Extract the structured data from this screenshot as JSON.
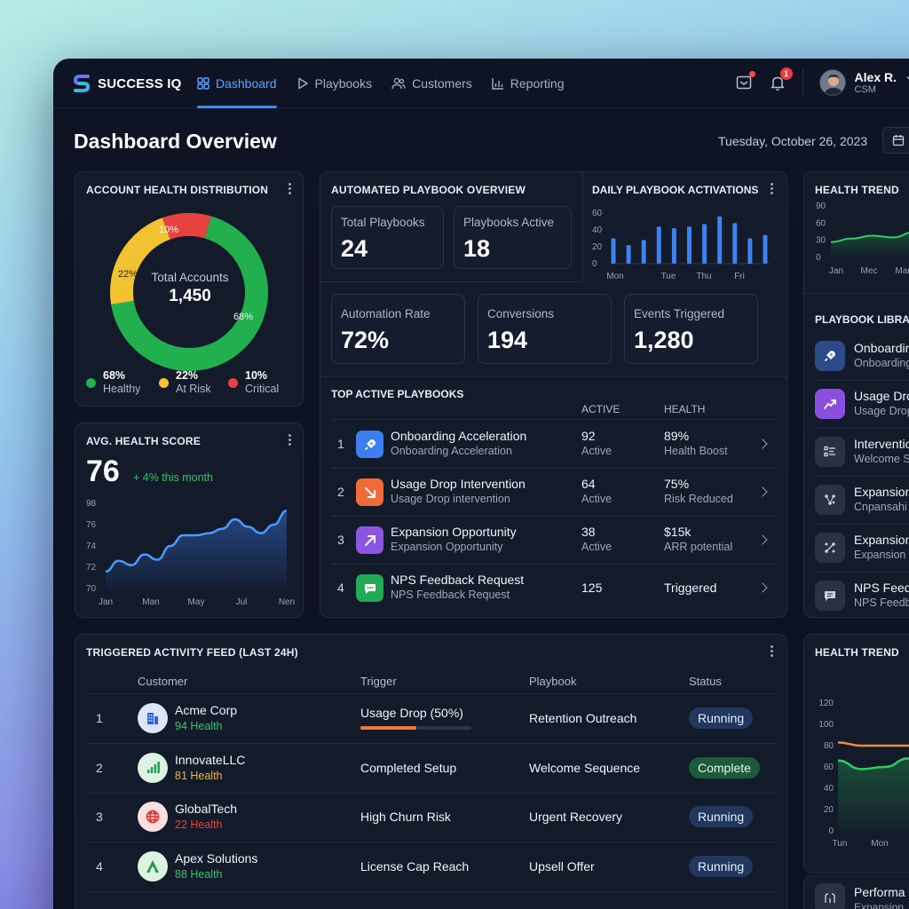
{
  "app": {
    "name": "SUCCESS IQ"
  },
  "nav": [
    {
      "label": "Dashboard",
      "icon": "grid-icon",
      "active": true
    },
    {
      "label": "Playbooks",
      "icon": "play-icon"
    },
    {
      "label": "Customers",
      "icon": "users-icon"
    },
    {
      "label": "Reporting",
      "icon": "bar-chart-icon"
    }
  ],
  "notifications": {
    "badge_count": "1"
  },
  "user": {
    "name": "Alex R.",
    "role": "CSM"
  },
  "page": {
    "title": "Dashboard Overview",
    "date": "Tuesday, October 26, 2023"
  },
  "health_distribution": {
    "title": "ACCOUNT HEALTH DISTRIBUTION",
    "center_label": "Total Accounts",
    "center_value": "1,450",
    "segments": [
      {
        "name": "Healthy",
        "pct_label": "68%",
        "value": 68,
        "color": "#22b04f"
      },
      {
        "name": "At Risk",
        "pct_label": "22%",
        "value": 22,
        "color": "#f2c230"
      },
      {
        "name": "Critical",
        "pct_label": "10%",
        "value": 10,
        "color": "#e8413f"
      }
    ]
  },
  "avg_health": {
    "title": "AVG. HEALTH SCORE",
    "value": "76",
    "change": "+ 4% this month",
    "y_ticks": [
      "98",
      "76",
      "74",
      "72",
      "70"
    ],
    "x_ticks": [
      "Jan",
      "Man",
      "May",
      "Jul",
      "Nen"
    ],
    "points": [
      71.6,
      72.6,
      72.2,
      73.2,
      72.7,
      74.0,
      75.0,
      75.0,
      75.2,
      75.6,
      76.5,
      75.8,
      75.2,
      76.0,
      77.3
    ]
  },
  "playbook_overview": {
    "title": "AUTOMATED PLAYBOOK OVERVIEW",
    "stats": [
      {
        "label": "Total Playbooks",
        "value": "24"
      },
      {
        "label": "Playbooks Active",
        "value": "18"
      },
      {
        "label": "Automation Rate",
        "value": "72%"
      },
      {
        "label": "Conversions",
        "value": "194"
      },
      {
        "label": "Events Triggered",
        "value": "1,280"
      }
    ]
  },
  "daily_activations": {
    "title": "DAILY PLAYBOOK ACTIVATIONS",
    "y_ticks": [
      "60",
      "40",
      "20",
      "0"
    ],
    "x_ticks": [
      "Mon",
      "Tue",
      "Thu",
      "Fri"
    ],
    "values": [
      30,
      22,
      28,
      44,
      42,
      44,
      47,
      56,
      48,
      30,
      34
    ],
    "color": "#3d82f0"
  },
  "health_trend_top": {
    "title": "HEALTH TREND",
    "y_ticks": [
      "90",
      "60",
      "30",
      "0"
    ],
    "x_ticks": [
      "Jan",
      "Mec",
      "Mar"
    ],
    "points": [
      27,
      33,
      38,
      35,
      44,
      42,
      47
    ]
  },
  "top_playbooks": {
    "title": "TOP ACTIVE PLAYBOOKS",
    "headers": {
      "active": "ACTIVE",
      "health": "HEALTH"
    },
    "rows": [
      {
        "rank": "1",
        "name": "Onboarding Acceleration",
        "sub": "Onboarding Acceleration",
        "active": "92",
        "active_sub": "Active",
        "health": "89%",
        "health_sub": "Health Boost",
        "icon": "rocket-icon",
        "color": "#3b7ff0"
      },
      {
        "rank": "2",
        "name": "Usage Drop Intervention",
        "sub": "Usage Drop intervention",
        "active": "64",
        "active_sub": "Active",
        "health": "75%",
        "health_sub": "Risk Reduced",
        "icon": "arrow-down-right-icon",
        "color": "#f06a3a"
      },
      {
        "rank": "3",
        "name": "Expansion Opportunity",
        "sub": "Expansion Opportunity",
        "active": "38",
        "active_sub": "Active",
        "health": "$15k",
        "health_sub": "ARR potential",
        "icon": "arrow-up-right-icon",
        "color": "#8b55e0"
      },
      {
        "rank": "4",
        "name": "NPS Feedback Request",
        "sub": "NPS Feedback Request",
        "active": "125",
        "active_sub": "",
        "health": "Triggered",
        "health_sub": "",
        "icon": "chat-icon",
        "color": "#24a957"
      }
    ]
  },
  "library": {
    "title": "PLAYBOOK LIBRARY",
    "items": [
      {
        "name": "Onboarding",
        "sub": "Onboarding",
        "icon": "rocket-icon",
        "color": "#2b4a86"
      },
      {
        "name": "Usage Drop",
        "sub": "Usage Drop",
        "icon": "trend-icon",
        "color": "#8b4fe0"
      },
      {
        "name": "Intervention",
        "sub": "Welcome S",
        "icon": "list-icon",
        "color": "#2a3142"
      },
      {
        "name": "Expansion",
        "sub": "Cnpansahi",
        "icon": "nodes-icon",
        "color": "#2a3142"
      },
      {
        "name": "Expansion",
        "sub": "Expansion",
        "icon": "share-icon",
        "color": "#2a3142"
      },
      {
        "name": "NPS Feed",
        "sub": "NPS Feedb",
        "icon": "message-icon",
        "color": "#2a3142"
      }
    ]
  },
  "activity_feed": {
    "title": "TRIGGERED ACTIVITY FEED (LAST 24H)",
    "headers": {
      "customer": "Customer",
      "trigger": "Trigger",
      "playbook": "Playbook",
      "status": "Status"
    },
    "rows": [
      {
        "rank": "1",
        "customer": "Acme Corp",
        "health": "94 Health",
        "health_color": "#37c46a",
        "trigger": "Usage Drop (50%)",
        "progress": 0.5,
        "playbook": "Retention Outreach",
        "status": "Running",
        "icon": "building-icon",
        "avatar_bg": "#dce6fa",
        "icon_color": "#2d5fd8"
      },
      {
        "rank": "2",
        "customer": "InnovateLLC",
        "health": "81 Health",
        "health_color": "#e8b93a",
        "trigger": "Completed Setup",
        "progress": null,
        "playbook": "Welcome Sequence",
        "status": "Complete",
        "icon": "signal-icon",
        "avatar_bg": "#dcf3e2",
        "icon_color": "#22a052"
      },
      {
        "rank": "3",
        "customer": "GlobalTech",
        "health": "22 Health",
        "health_color": "#e8413f",
        "trigger": "High Churn Risk",
        "progress": null,
        "playbook": "Urgent Recovery",
        "status": "Running",
        "icon": "globe-icon",
        "avatar_bg": "#fbdede",
        "icon_color": "#d8322f"
      },
      {
        "rank": "4",
        "customer": "Apex Solutions",
        "health": "88 Health",
        "health_color": "#37c46a",
        "trigger": "License Cap Reach",
        "progress": null,
        "playbook": "Upsell Offer",
        "status": "Running",
        "icon": "apex-icon",
        "avatar_bg": "#dcf3e2",
        "icon_color": "#1f9a4c"
      }
    ]
  },
  "health_trend_bottom": {
    "title": "HEALTH TREND",
    "y_ticks": [
      "120",
      "100",
      "80",
      "60",
      "40",
      "20",
      "0"
    ],
    "x_ticks": [
      "Tun",
      "Mon"
    ],
    "green": [
      66,
      58,
      60,
      68,
      80,
      90
    ],
    "orange": [
      83,
      80,
      80,
      80,
      82,
      87
    ]
  },
  "bottom_right": {
    "label": "Performa",
    "sub": "Expansion"
  }
}
